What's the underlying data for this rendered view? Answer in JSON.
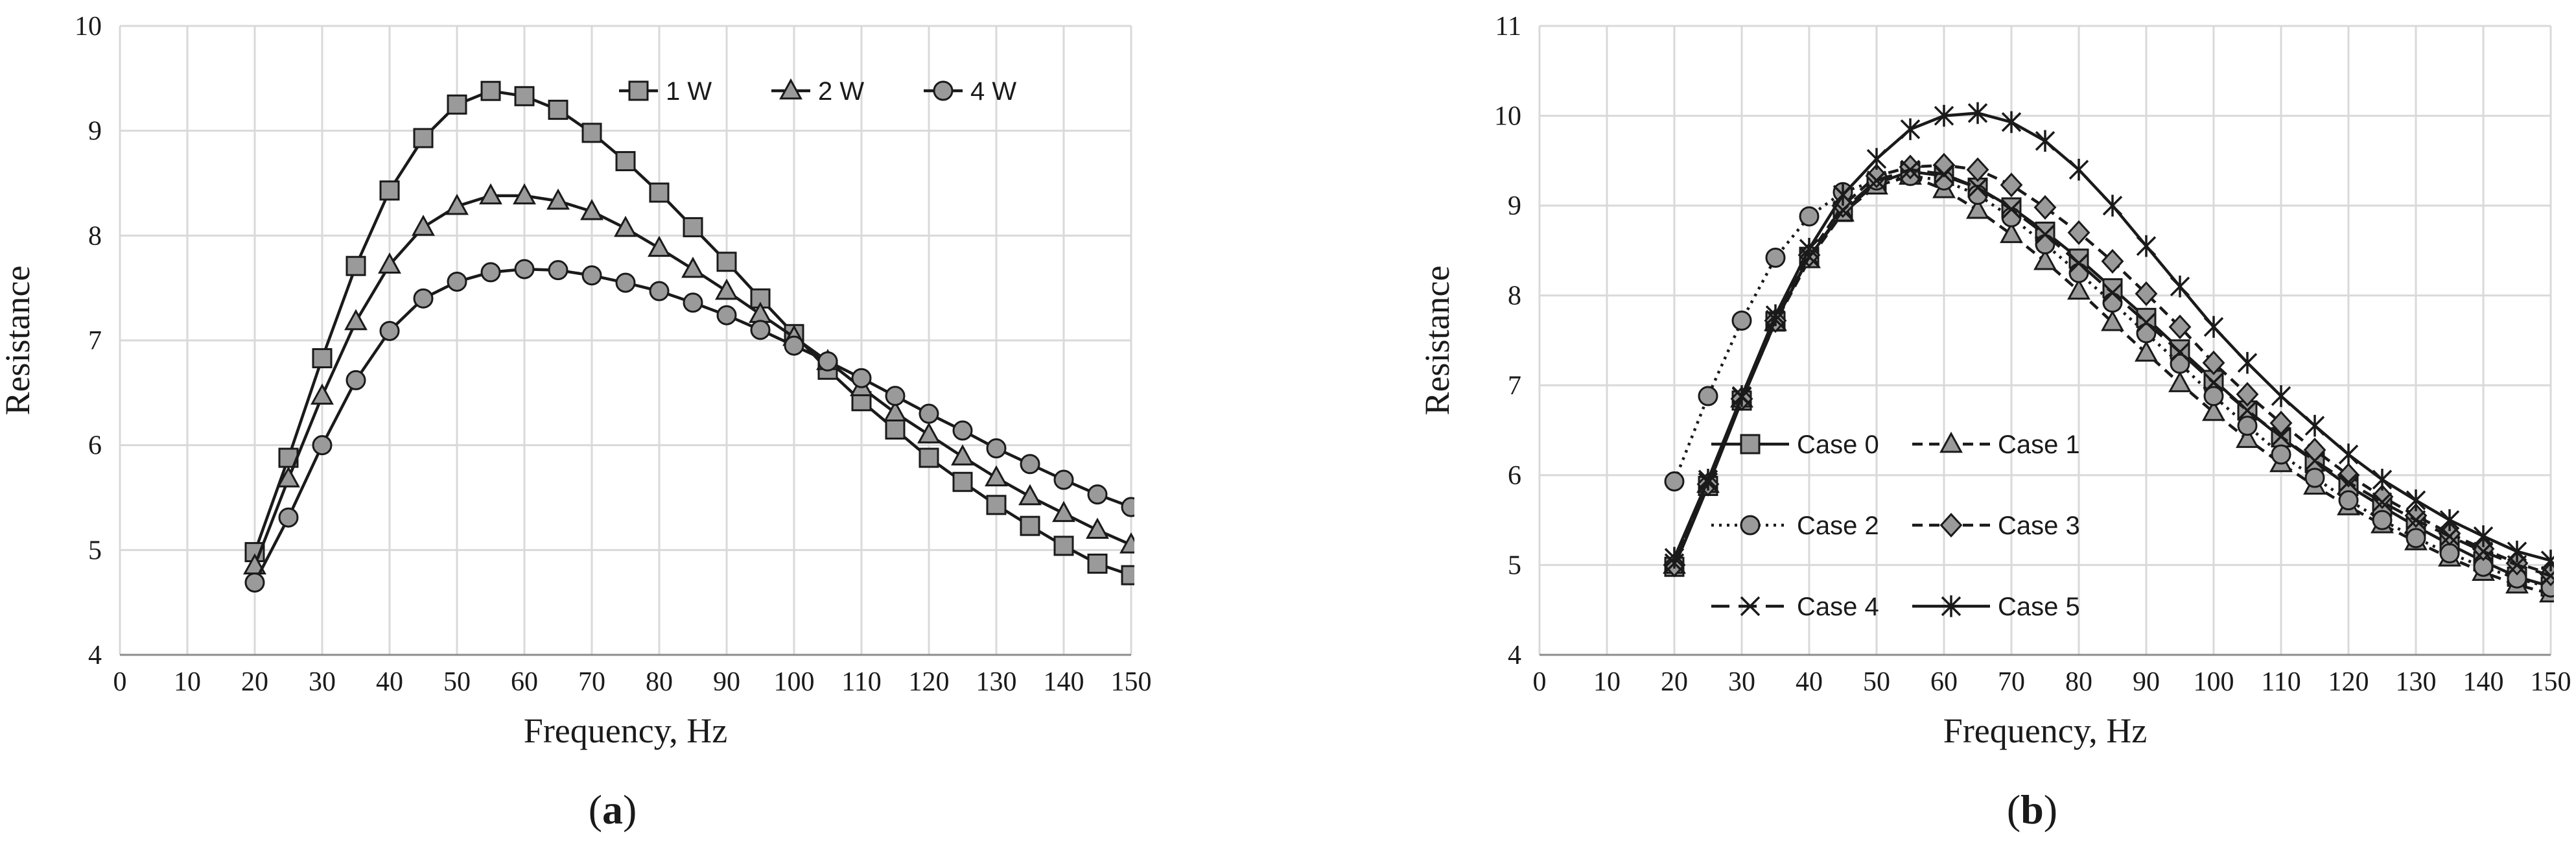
{
  "chart_data": [
    {
      "type": "line",
      "panel_label": "a",
      "xlabel": "Frequency, Hz",
      "ylabel": "Resistance",
      "xlim": [
        0,
        150
      ],
      "ylim": [
        4,
        10
      ],
      "xticks": [
        0,
        10,
        20,
        30,
        40,
        50,
        60,
        70,
        80,
        90,
        100,
        110,
        120,
        130,
        140,
        150
      ],
      "yticks": [
        4,
        5,
        6,
        7,
        8,
        9,
        10
      ],
      "grid": true,
      "legend": {
        "placement": "top-right",
        "layout": "single-row"
      },
      "x": [
        20,
        25,
        30,
        35,
        40,
        45,
        50,
        55,
        60,
        65,
        70,
        75,
        80,
        85,
        90,
        95,
        100,
        105,
        110,
        115,
        120,
        125,
        130,
        135,
        140,
        145,
        150
      ],
      "series": [
        {
          "name": "1 W",
          "marker": "square",
          "dash": "solid",
          "values": [
            4.98,
            5.88,
            6.83,
            7.71,
            8.43,
            8.93,
            9.25,
            9.38,
            9.33,
            9.2,
            8.98,
            8.71,
            8.41,
            8.08,
            7.75,
            7.4,
            7.06,
            6.72,
            6.42,
            6.15,
            5.88,
            5.65,
            5.43,
            5.23,
            5.04,
            4.87,
            4.76
          ]
        },
        {
          "name": "2 W",
          "marker": "triangle",
          "dash": "solid",
          "values": [
            4.85,
            5.68,
            6.47,
            7.18,
            7.72,
            8.08,
            8.28,
            8.38,
            8.38,
            8.33,
            8.23,
            8.07,
            7.88,
            7.68,
            7.47,
            7.25,
            7.03,
            6.8,
            6.55,
            6.31,
            6.1,
            5.89,
            5.69,
            5.51,
            5.35,
            5.19,
            5.05
          ]
        },
        {
          "name": "4 W",
          "marker": "circle",
          "dash": "solid",
          "values": [
            4.69,
            5.31,
            6.0,
            6.62,
            7.09,
            7.4,
            7.56,
            7.65,
            7.68,
            7.67,
            7.62,
            7.55,
            7.47,
            7.36,
            7.24,
            7.1,
            6.95,
            6.8,
            6.64,
            6.47,
            6.3,
            6.14,
            5.97,
            5.82,
            5.67,
            5.53,
            5.41
          ]
        }
      ]
    },
    {
      "type": "line",
      "panel_label": "b",
      "xlabel": "Frequency, Hz",
      "ylabel": "Resistance",
      "xlim": [
        0,
        150
      ],
      "ylim": [
        4,
        11
      ],
      "xticks": [
        0,
        10,
        20,
        30,
        40,
        50,
        60,
        70,
        80,
        90,
        100,
        110,
        120,
        130,
        140,
        150
      ],
      "yticks": [
        4,
        5,
        6,
        7,
        8,
        9,
        10,
        11
      ],
      "grid": true,
      "legend": {
        "placement": "bottom-left",
        "layout": "two-columns"
      },
      "x": [
        20,
        25,
        30,
        35,
        40,
        45,
        50,
        55,
        60,
        65,
        70,
        75,
        80,
        85,
        90,
        95,
        100,
        105,
        110,
        115,
        120,
        125,
        130,
        135,
        140,
        145,
        150
      ],
      "series": [
        {
          "name": "Case 0",
          "marker": "square",
          "dash": "solid",
          "values": [
            4.98,
            5.88,
            6.83,
            7.71,
            8.43,
            8.93,
            9.25,
            9.38,
            9.33,
            9.2,
            8.98,
            8.71,
            8.41,
            8.08,
            7.75,
            7.4,
            7.06,
            6.72,
            6.42,
            6.15,
            5.88,
            5.65,
            5.43,
            5.23,
            5.04,
            4.87,
            4.76
          ]
        },
        {
          "name": "Case 1",
          "marker": "triangle",
          "dash": "dashed",
          "values": [
            5.0,
            5.9,
            6.85,
            7.7,
            8.4,
            8.92,
            9.22,
            9.33,
            9.18,
            8.95,
            8.68,
            8.38,
            8.05,
            7.7,
            7.36,
            7.02,
            6.7,
            6.4,
            6.13,
            5.88,
            5.65,
            5.45,
            5.26,
            5.08,
            4.92,
            4.78,
            4.68
          ]
        },
        {
          "name": "Case 2",
          "marker": "circle",
          "dash": "dotted",
          "values": [
            5.93,
            6.88,
            7.72,
            8.42,
            8.88,
            9.15,
            9.28,
            9.33,
            9.28,
            9.12,
            8.87,
            8.57,
            8.25,
            7.92,
            7.58,
            7.24,
            6.88,
            6.55,
            6.23,
            5.97,
            5.72,
            5.5,
            5.3,
            5.13,
            4.98,
            4.85,
            4.75
          ]
        },
        {
          "name": "Case 3",
          "marker": "diamond",
          "dash": "dashed",
          "values": [
            5.0,
            5.9,
            6.85,
            7.72,
            8.45,
            9.0,
            9.33,
            9.43,
            9.45,
            9.4,
            9.23,
            8.98,
            8.7,
            8.38,
            8.02,
            7.65,
            7.25,
            6.9,
            6.58,
            6.28,
            6.0,
            5.76,
            5.55,
            5.35,
            5.18,
            5.02,
            4.9
          ]
        },
        {
          "name": "Case 4",
          "marker": "x",
          "dash": "long-dash",
          "values": [
            5.02,
            5.92,
            6.87,
            7.73,
            8.43,
            8.95,
            9.28,
            9.4,
            9.35,
            9.2,
            8.96,
            8.68,
            8.36,
            8.03,
            7.7,
            7.37,
            7.03,
            6.72,
            6.43,
            6.16,
            5.92,
            5.7,
            5.5,
            5.32,
            5.15,
            5.0,
            4.88
          ]
        },
        {
          "name": "Case 5",
          "marker": "star",
          "dash": "solid",
          "values": [
            5.08,
            5.95,
            6.88,
            7.78,
            8.52,
            9.12,
            9.52,
            9.85,
            10.0,
            10.03,
            9.93,
            9.72,
            9.4,
            9.0,
            8.55,
            8.1,
            7.65,
            7.25,
            6.88,
            6.55,
            6.23,
            5.95,
            5.72,
            5.5,
            5.32,
            5.15,
            5.05
          ]
        }
      ]
    }
  ]
}
